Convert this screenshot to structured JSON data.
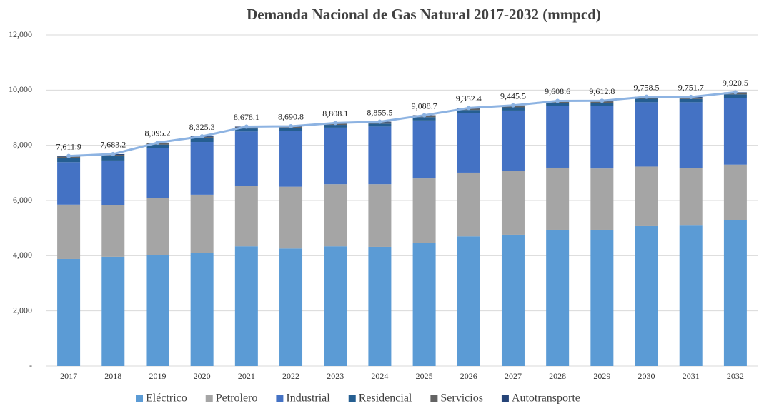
{
  "chart_data": {
    "type": "bar",
    "title": "Demanda Nacional de Gas Natural 2017-2032 (mmpcd)",
    "categories": [
      "2017",
      "2018",
      "2019",
      "2020",
      "2021",
      "2022",
      "2023",
      "2024",
      "2025",
      "2026",
      "2027",
      "2028",
      "2029",
      "2030",
      "2031",
      "2032"
    ],
    "stacked": true,
    "series": [
      {
        "name": "Eléctrico",
        "color": "#5b9bd5",
        "values": [
          3880,
          3960,
          4030,
          4110,
          4340,
          4260,
          4340,
          4320,
          4470,
          4700,
          4760,
          4940,
          4940,
          5070,
          5090,
          5280
        ]
      },
      {
        "name": "Petrolero",
        "color": "#a5a5a5",
        "values": [
          1970,
          1880,
          2050,
          2100,
          2200,
          2240,
          2250,
          2270,
          2330,
          2310,
          2300,
          2250,
          2220,
          2160,
          2080,
          2020
        ]
      },
      {
        "name": "Industrial",
        "color": "#4472c4",
        "values": [
          1540,
          1610,
          1820,
          1910,
          1960,
          2020,
          2050,
          2090,
          2100,
          2160,
          2200,
          2230,
          2260,
          2330,
          2390,
          2420
        ]
      },
      {
        "name": "Residencial",
        "color": "#255e91",
        "values": [
          150,
          160,
          125,
          135,
          110,
          100,
          100,
          105,
          120,
          110,
          115,
          115,
          120,
          125,
          120,
          125
        ]
      },
      {
        "name": "Servicios",
        "color": "#636363",
        "values": [
          45,
          45,
          45,
          45,
          45,
          45,
          45,
          45,
          45,
          45,
          45,
          45,
          45,
          45,
          45,
          45
        ]
      },
      {
        "name": "Autotransporte",
        "color": "#264478",
        "values": [
          27,
          28,
          25,
          25,
          23,
          26,
          23,
          25,
          24,
          27,
          25,
          28,
          27,
          28,
          26,
          30
        ]
      }
    ],
    "total": {
      "color": "#8db3e2",
      "values": [
        7611.9,
        7683.2,
        8095.2,
        8325.3,
        8678.1,
        8690.8,
        8808.1,
        8855.5,
        9088.7,
        9352.4,
        9445.5,
        9608.6,
        9612.8,
        9758.5,
        9751.7,
        9920.5
      ],
      "value_labels": [
        "7,611.9",
        "7,683.2",
        "8,095.2",
        "8,325.3",
        "8,678.1",
        "8,690.8",
        "8,808.1",
        "8,855.5",
        "9,088.7",
        "9,352.4",
        "9,445.5",
        "9,608.6",
        "9,612.8",
        "9,758.5",
        "9,751.7",
        "9,920.5"
      ]
    },
    "ylim": [
      0,
      12000
    ],
    "yticks": [
      {
        "value": 0,
        "label": "-"
      },
      {
        "value": 2000,
        "label": "2,000"
      },
      {
        "value": 4000,
        "label": "4,000"
      },
      {
        "value": 6000,
        "label": "6,000"
      },
      {
        "value": 8000,
        "label": "8,000"
      },
      {
        "value": 10000,
        "label": "10,000"
      },
      {
        "value": 12000,
        "label": "12,000"
      }
    ],
    "grid": true,
    "legend": "bottom"
  }
}
